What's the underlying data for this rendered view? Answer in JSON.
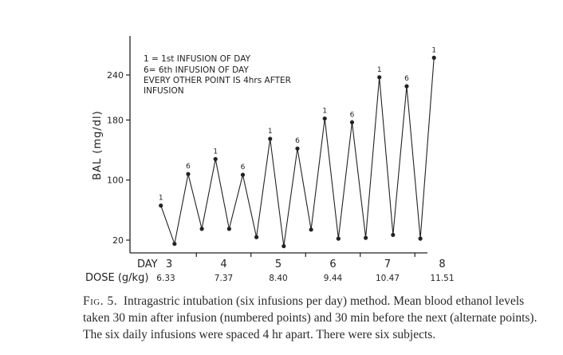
{
  "chart_data": {
    "type": "line",
    "ylabel": "BAL (mg/dl)",
    "ylim": [
      20,
      240
    ],
    "yticks": [
      20,
      100,
      180,
      240
    ],
    "legend_lines": [
      "1 = 1st INFUSION OF DAY",
      "6= 6th INFUSION OF DAY",
      "EVERY OTHER POINT IS 4hrs AFTER",
      "INFUSION"
    ],
    "day_label": "DAY",
    "dose_label": "DOSE (g/kg)",
    "days": [
      {
        "day": "3",
        "dose": "6.33"
      },
      {
        "day": "4",
        "dose": "7.37"
      },
      {
        "day": "5",
        "dose": "8.40"
      },
      {
        "day": "6",
        "dose": "9.44"
      },
      {
        "day": "7",
        "dose": "10.47"
      },
      {
        "day": "8",
        "dose": "11.51"
      }
    ],
    "series": [
      {
        "points": [
          {
            "day": 2.85,
            "bal": 66,
            "label": "1"
          },
          {
            "day": 3.1,
            "bal": 15,
            "label": ""
          },
          {
            "day": 3.35,
            "bal": 108,
            "label": "6"
          },
          {
            "day": 3.6,
            "bal": 35,
            "label": ""
          },
          {
            "day": 3.85,
            "bal": 128,
            "label": "1"
          },
          {
            "day": 4.1,
            "bal": 35,
            "label": ""
          },
          {
            "day": 4.35,
            "bal": 107,
            "label": "6"
          },
          {
            "day": 4.6,
            "bal": 24,
            "label": ""
          },
          {
            "day": 4.85,
            "bal": 155,
            "label": "1"
          },
          {
            "day": 5.1,
            "bal": 12,
            "label": ""
          },
          {
            "day": 5.35,
            "bal": 142,
            "label": "6"
          },
          {
            "day": 5.6,
            "bal": 34,
            "label": ""
          },
          {
            "day": 5.85,
            "bal": 182,
            "label": "1"
          },
          {
            "day": 6.1,
            "bal": 22,
            "label": ""
          },
          {
            "day": 6.35,
            "bal": 177,
            "label": "6"
          },
          {
            "day": 6.6,
            "bal": 23,
            "label": ""
          },
          {
            "day": 6.85,
            "bal": 237,
            "label": "1"
          },
          {
            "day": 7.1,
            "bal": 27,
            "label": ""
          },
          {
            "day": 7.35,
            "bal": 225,
            "label": "6"
          },
          {
            "day": 7.6,
            "bal": 22,
            "label": ""
          },
          {
            "day": 7.85,
            "bal": 263,
            "label": "1"
          }
        ]
      }
    ]
  },
  "caption": {
    "fig_label": "Fig. 5.",
    "text": "Intragastric intubation (six infusions per day) method. Mean blood ethanol levels taken 30 min after infusion (numbered points) and 30 min before the next (alternate points). The six daily infusions were spaced 4 hr apart. There were six subjects."
  }
}
